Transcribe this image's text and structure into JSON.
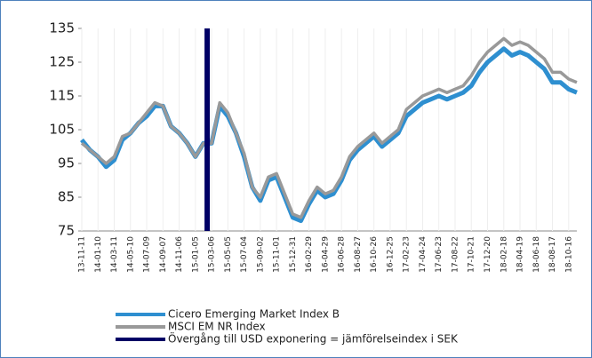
{
  "chart_data": {
    "type": "line",
    "categories": [
      "13-11-11",
      null,
      "14-01-10",
      null,
      "14-03-11",
      null,
      "14-05-10",
      null,
      "14-07-09",
      null,
      "14-09-07",
      null,
      "14-11-06",
      null,
      "15-01-05",
      null,
      "15-03-06",
      null,
      "15-05-05",
      null,
      "15-07-04",
      null,
      "15-09-02",
      null,
      "15-11-01",
      null,
      "15-12-31",
      null,
      "16-02-29",
      null,
      "16-04-29",
      null,
      "16-06-28",
      null,
      "16-08-27",
      null,
      "16-10-26",
      null,
      "16-12-25",
      null,
      "17-02-23",
      null,
      "17-04-24",
      null,
      "17-06-23",
      null,
      "17-08-22",
      null,
      "17-10-21",
      null,
      "17-12-20",
      null,
      "18-02-18",
      null,
      "18-04-19",
      null,
      "18-06-18",
      null,
      "18-08-17",
      null,
      "18-10-16",
      null
    ],
    "series": [
      {
        "name": "Cicero Emerging Market Index B",
        "color": "#2e8fd0",
        "values": [
          102,
          99,
          97,
          94,
          96,
          102,
          104,
          107,
          109,
          112,
          112,
          106,
          104,
          101,
          97,
          101,
          101,
          112,
          109,
          104,
          97,
          88,
          84,
          90,
          91,
          85,
          79,
          78,
          83,
          87,
          85,
          86,
          90,
          96,
          99,
          101,
          103,
          100,
          102,
          104,
          109,
          111,
          113,
          114,
          115,
          114,
          115,
          116,
          118,
          122,
          125,
          127,
          129,
          127,
          128,
          127,
          125,
          123,
          119,
          119,
          117,
          116
        ]
      },
      {
        "name": "MSCI EM NR Index",
        "color": "#999999",
        "values": [
          101,
          99,
          97,
          95,
          97,
          103,
          104,
          107,
          110,
          113,
          112,
          106,
          104,
          101,
          97,
          101,
          101,
          113,
          110,
          104,
          98,
          88,
          85,
          91,
          92,
          86,
          80,
          79,
          84,
          88,
          86,
          87,
          91,
          97,
          100,
          102,
          104,
          101,
          103,
          105,
          111,
          113,
          115,
          116,
          117,
          116,
          117,
          118,
          121,
          125,
          128,
          130,
          132,
          130,
          131,
          130,
          128,
          126,
          122,
          122,
          120,
          119
        ]
      }
    ],
    "marker": {
      "name": "Övergång till USD exponering = jämförelseindex i SEK",
      "color": "#000066",
      "at_category": "15-03-06"
    },
    "ylim": [
      75,
      135
    ],
    "yticks": [
      75,
      85,
      95,
      105,
      115,
      125,
      135
    ],
    "grid": false
  }
}
